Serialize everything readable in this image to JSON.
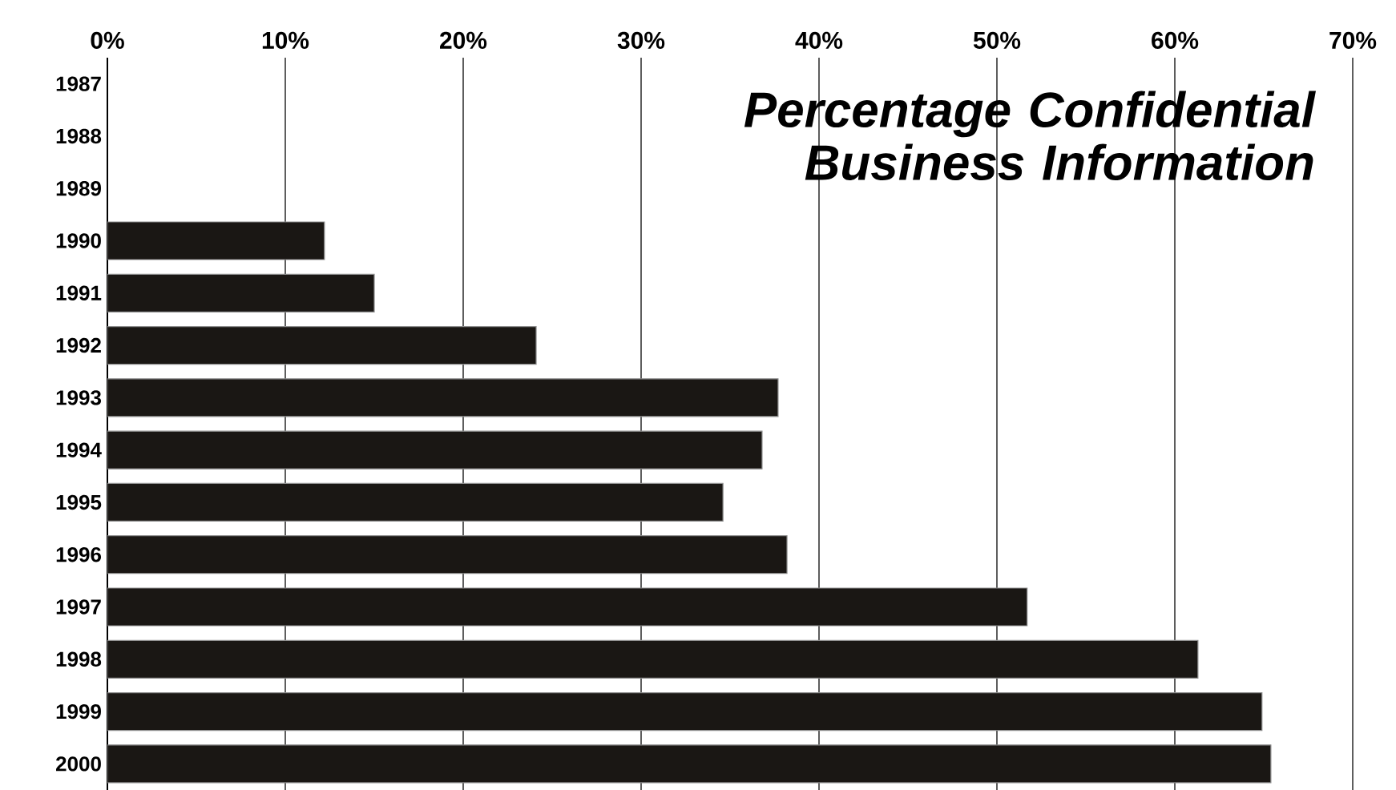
{
  "chart_data": {
    "type": "bar",
    "orientation": "horizontal",
    "title": "Percentage Confidential Business Information",
    "categories": [
      "1987",
      "1988",
      "1989",
      "1990",
      "1991",
      "1992",
      "1993",
      "1994",
      "1995",
      "1996",
      "1997",
      "1998",
      "1999",
      "2000"
    ],
    "values": [
      null,
      null,
      null,
      12.2,
      15.0,
      24.1,
      37.7,
      36.8,
      34.6,
      38.2,
      51.7,
      61.3,
      64.9,
      65.4
    ],
    "color": "#1a1714",
    "xlim": [
      0,
      70
    ],
    "xticks": [
      {
        "value": 0,
        "label": "0%"
      },
      {
        "value": 10,
        "label": "10%"
      },
      {
        "value": 20,
        "label": "20%"
      },
      {
        "value": 30,
        "label": "30%"
      },
      {
        "value": 40,
        "label": "40%"
      },
      {
        "value": 50,
        "label": "50%"
      },
      {
        "value": 60,
        "label": "60%"
      },
      {
        "value": 70,
        "label": "70%"
      }
    ],
    "grid": "x"
  }
}
